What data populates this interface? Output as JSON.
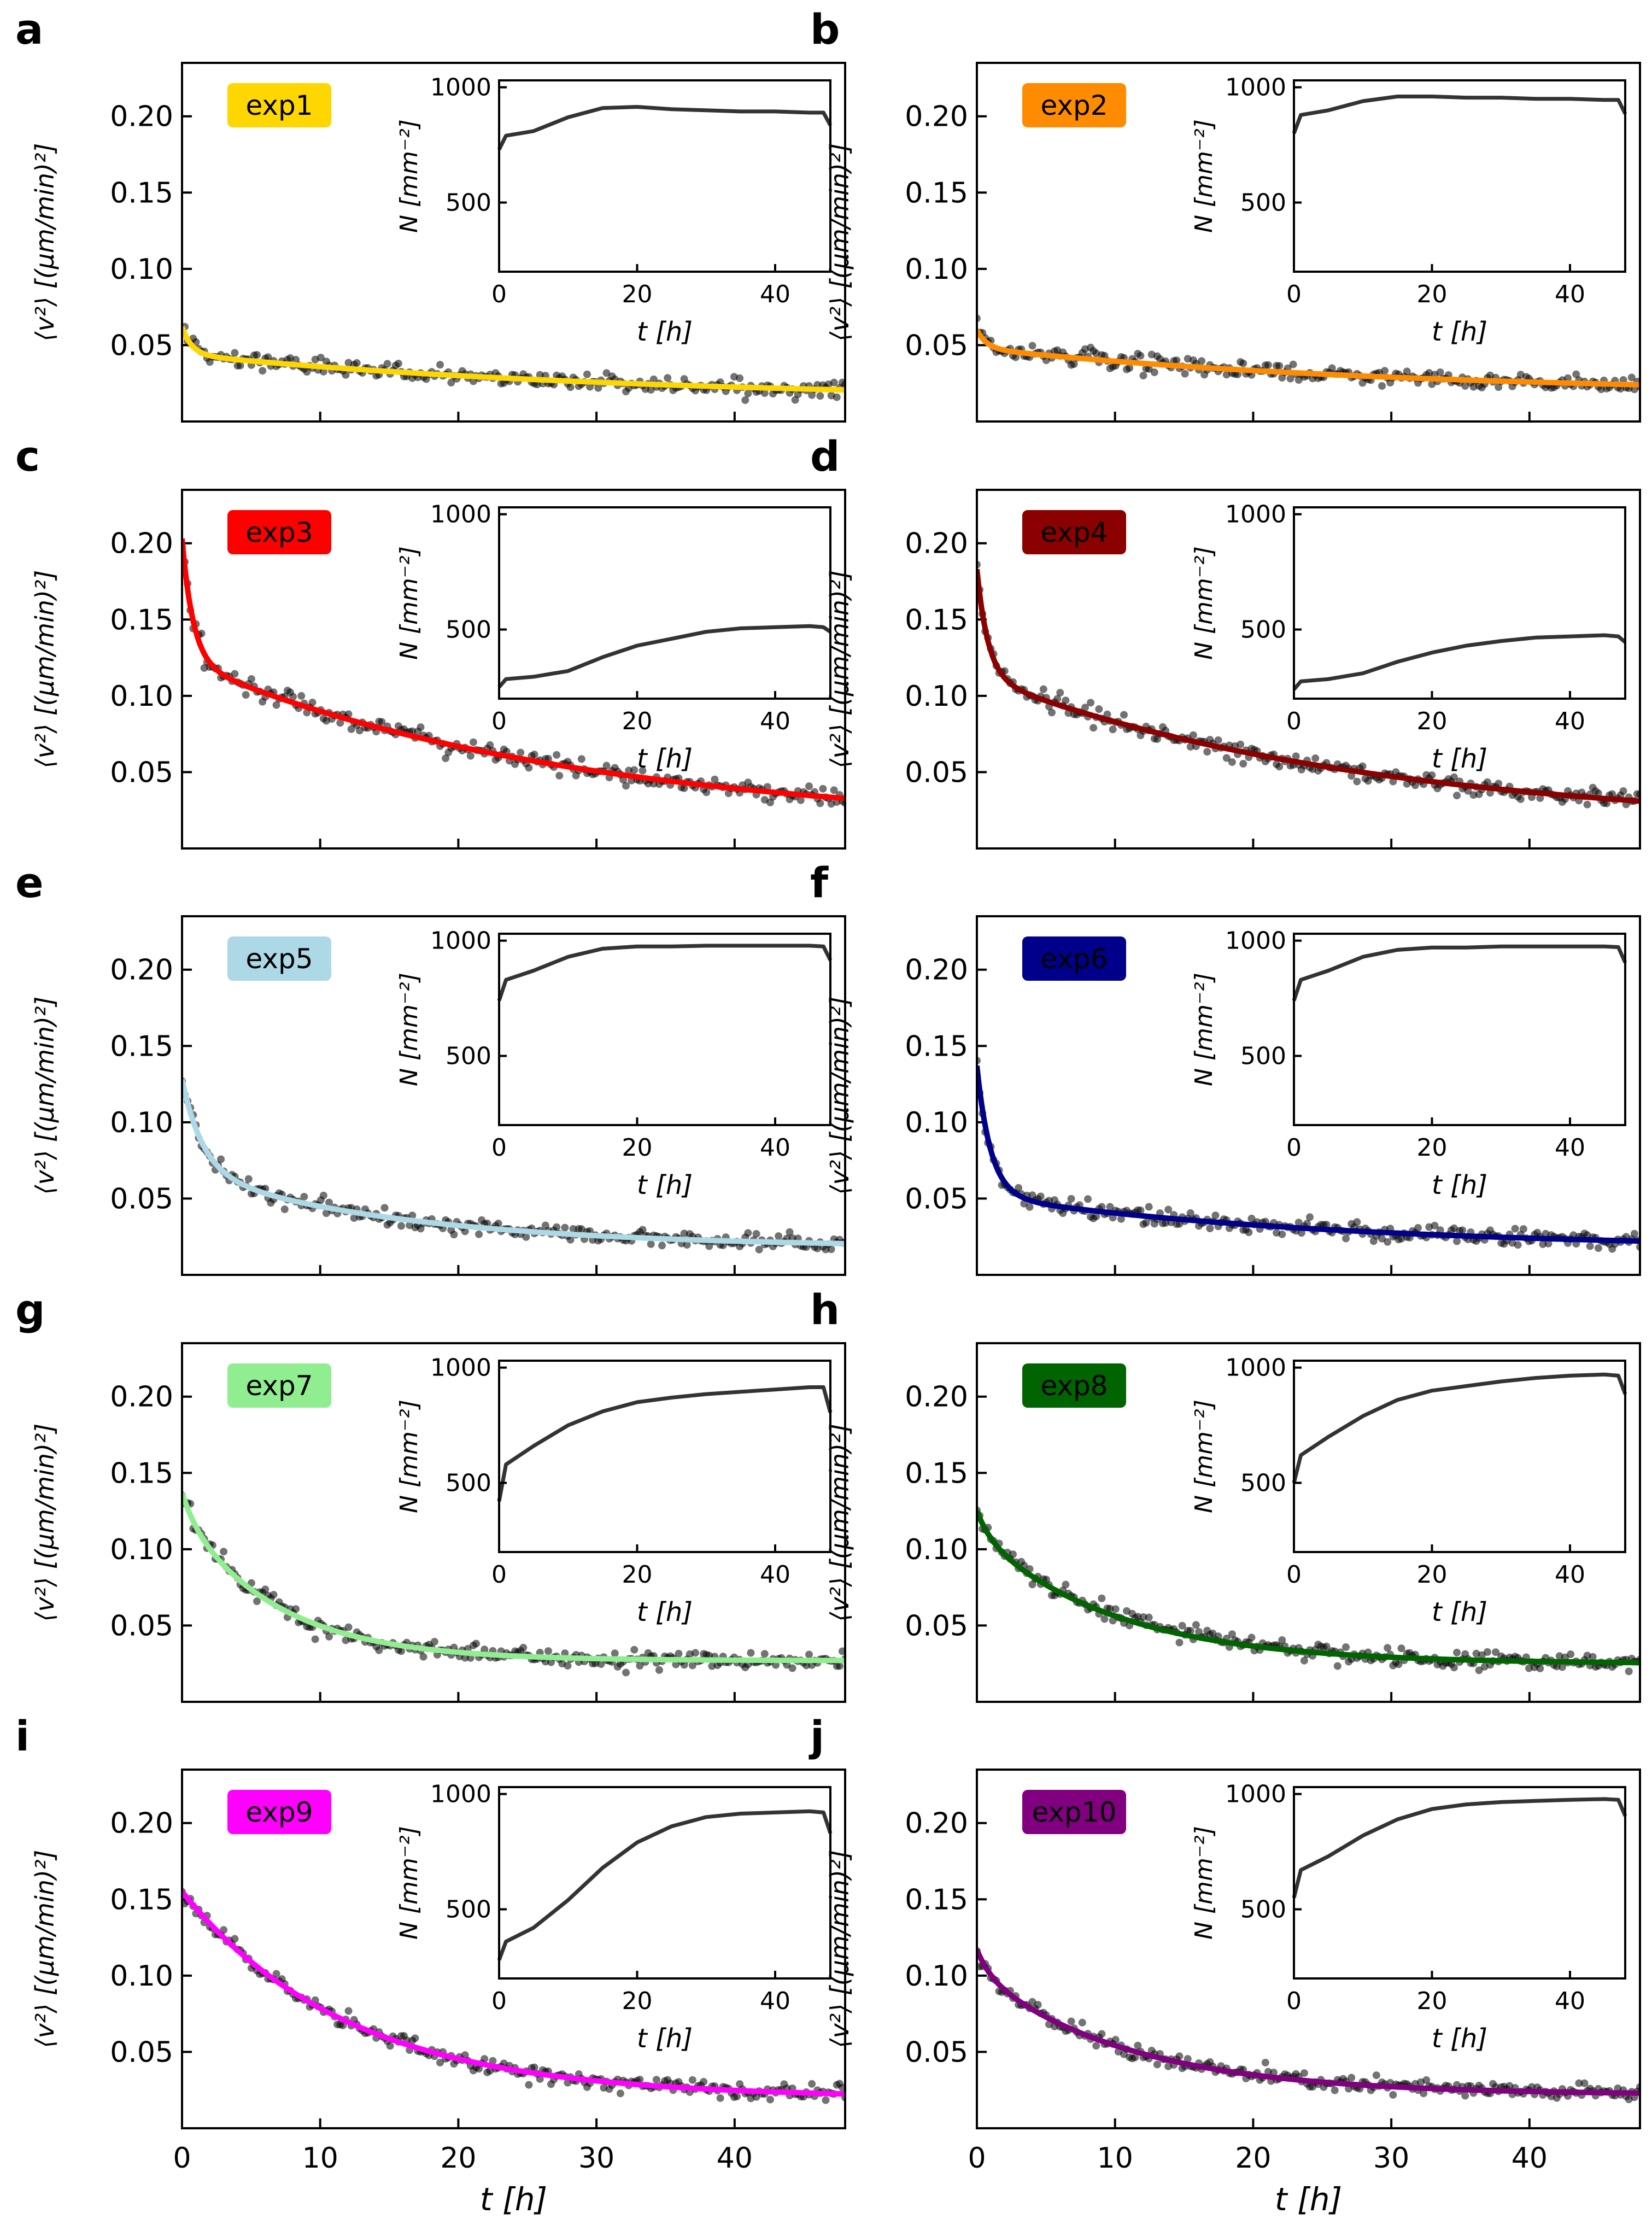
{
  "figure": {
    "main_xlabel": "t [h]",
    "main_ylabel": "⟨v²⟩ [(μm/min)²]",
    "inset_xlabel": "t [h]",
    "inset_ylabel": "N [mm⁻²]",
    "main_xlim": [
      0,
      48
    ],
    "main_ylim": [
      0,
      0.235
    ],
    "main_xticks": [
      0,
      10,
      20,
      30,
      40
    ],
    "main_yticks": [
      0.05,
      0.1,
      0.15,
      0.2
    ],
    "main_ytick_labels": [
      "0.05",
      "0.10",
      "0.15",
      "0.20"
    ],
    "inset_xlim": [
      0,
      48
    ],
    "inset_ylim": [
      200,
      1030
    ],
    "inset_xticks": [
      0,
      20,
      40
    ],
    "inset_yticks": [
      500,
      1000
    ],
    "scatter_color": "#000000",
    "inset_line_color": "#333333"
  },
  "chart_data": [
    {
      "type": "scatter",
      "panel": "a",
      "legend": "exp1",
      "color": "#FFD700",
      "legend_text_color": "#000000",
      "vfit": {
        "a1": 0.018,
        "t1": 0.7,
        "a2": 0.03,
        "t2": 32,
        "c": 0.014
      },
      "density": {
        "x": [
          0,
          1,
          5,
          10,
          15,
          20,
          25,
          30,
          35,
          40,
          45,
          47,
          48
        ],
        "y": [
          730,
          790,
          810,
          870,
          910,
          915,
          905,
          900,
          895,
          895,
          890,
          890,
          835
        ]
      }
    },
    {
      "type": "scatter",
      "panel": "b",
      "legend": "exp2",
      "color": "#FF8C00",
      "legend_text_color": "#000000",
      "vfit": {
        "a1": 0.012,
        "t1": 0.7,
        "a2": 0.03,
        "t2": 30,
        "c": 0.018
      },
      "density": {
        "x": [
          0,
          1,
          5,
          10,
          15,
          20,
          25,
          30,
          35,
          40,
          45,
          47,
          48
        ],
        "y": [
          800,
          880,
          900,
          940,
          960,
          960,
          955,
          955,
          950,
          950,
          945,
          945,
          885
        ]
      }
    },
    {
      "type": "scatter",
      "panel": "c",
      "legend": "exp3",
      "color": "#FF0000",
      "legend_text_color": "#000000",
      "vfit": {
        "a1": 0.08,
        "t1": 0.8,
        "a2": 0.11,
        "t2": 28,
        "c": 0.013
      },
      "density": {
        "x": [
          0,
          1,
          5,
          10,
          15,
          20,
          25,
          30,
          35,
          40,
          45,
          47,
          48
        ],
        "y": [
          250,
          285,
          295,
          320,
          380,
          430,
          460,
          490,
          505,
          510,
          515,
          510,
          490
        ]
      }
    },
    {
      "type": "scatter",
      "panel": "d",
      "legend": "exp4",
      "color": "#8B0000",
      "legend_text_color": "#ffffff",
      "vfit": {
        "a1": 0.07,
        "t1": 0.8,
        "a2": 0.1,
        "t2": 28,
        "c": 0.013
      },
      "density": {
        "x": [
          0,
          1,
          5,
          10,
          15,
          20,
          25,
          30,
          35,
          40,
          45,
          47,
          48
        ],
        "y": [
          240,
          275,
          285,
          310,
          360,
          400,
          430,
          450,
          465,
          470,
          475,
          470,
          445
        ]
      }
    },
    {
      "type": "scatter",
      "panel": "e",
      "legend": "exp5",
      "color": "#ADD8E6",
      "legend_text_color": "#000000",
      "vfit": {
        "a1": 0.06,
        "t1": 1.5,
        "a2": 0.05,
        "t2": 16,
        "c": 0.018
      },
      "density": {
        "x": [
          0,
          1,
          5,
          10,
          15,
          20,
          25,
          30,
          35,
          40,
          45,
          47,
          48
        ],
        "y": [
          740,
          830,
          870,
          930,
          965,
          975,
          975,
          978,
          978,
          978,
          978,
          975,
          915
        ]
      }
    },
    {
      "type": "scatter",
      "panel": "f",
      "legend": "exp6",
      "color": "#00008B",
      "legend_text_color": "#ffffff",
      "vfit": {
        "a1": 0.085,
        "t1": 1.0,
        "a2": 0.035,
        "t2": 25,
        "c": 0.017
      },
      "density": {
        "x": [
          0,
          1,
          5,
          10,
          15,
          20,
          25,
          30,
          35,
          40,
          45,
          47,
          48
        ],
        "y": [
          740,
          830,
          870,
          930,
          960,
          970,
          970,
          975,
          975,
          975,
          975,
          972,
          905
        ]
      }
    },
    {
      "type": "scatter",
      "panel": "g",
      "legend": "exp7",
      "color": "#90EE90",
      "legend_text_color": "#000000",
      "vfit": {
        "a1": 0.015,
        "t1": 1.0,
        "a2": 0.095,
        "t2": 7,
        "c": 0.027
      },
      "density": {
        "x": [
          0,
          1,
          5,
          10,
          15,
          20,
          25,
          30,
          35,
          40,
          45,
          47,
          48
        ],
        "y": [
          420,
          580,
          660,
          750,
          810,
          850,
          870,
          885,
          895,
          905,
          915,
          915,
          805
        ]
      }
    },
    {
      "type": "scatter",
      "panel": "h",
      "legend": "exp8",
      "color": "#006400",
      "legend_text_color": "#ffffff",
      "vfit": {
        "a1": 0.015,
        "t1": 1.0,
        "a2": 0.085,
        "t2": 10,
        "c": 0.025
      },
      "density": {
        "x": [
          0,
          1,
          5,
          10,
          15,
          20,
          25,
          30,
          35,
          40,
          45,
          47,
          48
        ],
        "y": [
          500,
          620,
          700,
          790,
          860,
          900,
          920,
          940,
          955,
          965,
          970,
          965,
          885
        ]
      }
    },
    {
      "type": "scatter",
      "panel": "i",
      "legend": "exp9",
      "color": "#FF00FF",
      "legend_text_color": "#000000",
      "vfit": {
        "a1": 0.0,
        "t1": 1.0,
        "a2": 0.135,
        "t2": 12,
        "c": 0.02
      },
      "density": {
        "x": [
          0,
          1,
          5,
          10,
          15,
          20,
          25,
          30,
          35,
          40,
          45,
          47,
          48
        ],
        "y": [
          280,
          360,
          420,
          540,
          680,
          790,
          860,
          900,
          915,
          920,
          925,
          920,
          830
        ]
      }
    },
    {
      "type": "scatter",
      "panel": "j",
      "legend": "exp10",
      "color": "#800080",
      "legend_text_color": "#ffffff",
      "vfit": {
        "a1": 0.015,
        "t1": 1.0,
        "a2": 0.08,
        "t2": 11,
        "c": 0.022
      },
      "density": {
        "x": [
          0,
          1,
          5,
          10,
          15,
          20,
          25,
          30,
          35,
          40,
          45,
          47,
          48
        ],
        "y": [
          550,
          670,
          730,
          820,
          890,
          935,
          955,
          965,
          970,
          975,
          978,
          975,
          905
        ]
      }
    }
  ]
}
